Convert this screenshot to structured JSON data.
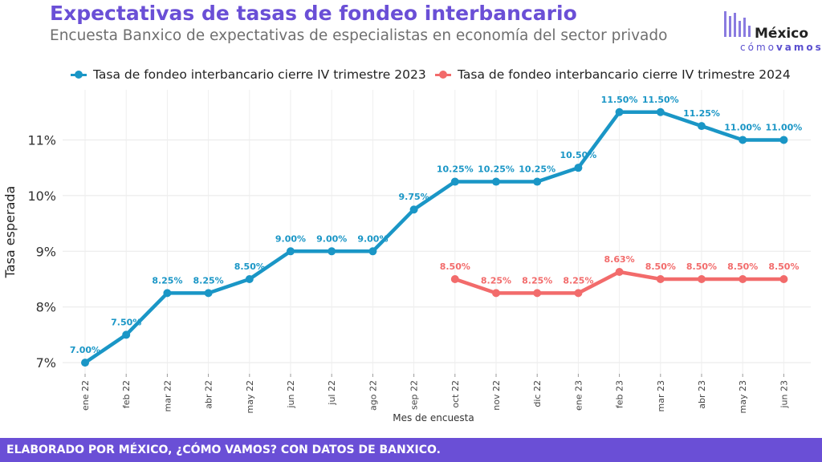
{
  "header": {
    "title": "Expectativas de tasas de fondeo interbancario",
    "subtitle": "Encuesta Banxico de expectativas de especialistas en economía del sector privado"
  },
  "logo": {
    "name": "México",
    "tag_plain": "cómo",
    "tag_bold": "vamos",
    "color": "#6a4fd6"
  },
  "footer": {
    "text": "ELABORADO POR MÉXICO, ¿CÓMO VAMOS? CON DATOS DE BANXICO."
  },
  "chart_data": {
    "type": "line",
    "title": "Expectativas de tasas de fondeo interbancario",
    "xlabel": "Mes de encuesta",
    "ylabel": "Tasa esperada",
    "categories": [
      "ene 22",
      "feb 22",
      "mar 22",
      "abr 22",
      "may 22",
      "jun 22",
      "jul 22",
      "ago 22",
      "sep 22",
      "oct 22",
      "nov 22",
      "dic 22",
      "ene 23",
      "feb 23",
      "mar 23",
      "abr 23",
      "may 23",
      "jun 23"
    ],
    "yticks": [
      7,
      8,
      9,
      10,
      11
    ],
    "ytick_labels": [
      "7%",
      "8%",
      "9%",
      "10%",
      "11%"
    ],
    "ylim": [
      6.8,
      11.9
    ],
    "grid": true,
    "legend_position": "top",
    "series": [
      {
        "name": "Tasa de fondeo interbancario cierre IV trimestre 2023",
        "color": "#1a96c6",
        "values": [
          7.0,
          7.5,
          8.25,
          8.25,
          8.5,
          9.0,
          9.0,
          9.0,
          9.75,
          10.25,
          10.25,
          10.25,
          10.5,
          11.5,
          11.5,
          11.25,
          11.0,
          11.0
        ],
        "labels": [
          "7.00%",
          "7.50%",
          "8.25%",
          "8.25%",
          "8.50%",
          "9.00%",
          "9.00%",
          "9.00%",
          "9.75%",
          "10.25%",
          "10.25%",
          "10.25%",
          "10.50%",
          "11.50%",
          "11.50%",
          "11.25%",
          "11.00%",
          "11.00%"
        ]
      },
      {
        "name": "Tasa de fondeo interbancario cierre IV trimestre 2024",
        "color": "#f26b6b",
        "values": [
          null,
          null,
          null,
          null,
          null,
          null,
          null,
          null,
          null,
          8.5,
          8.25,
          8.25,
          8.25,
          8.63,
          8.5,
          8.5,
          8.5,
          8.5
        ],
        "labels": [
          null,
          null,
          null,
          null,
          null,
          null,
          null,
          null,
          null,
          "8.50%",
          "8.25%",
          "8.25%",
          "8.25%",
          "8.63%",
          "8.50%",
          "8.50%",
          "8.50%",
          "8.50%"
        ]
      }
    ]
  }
}
